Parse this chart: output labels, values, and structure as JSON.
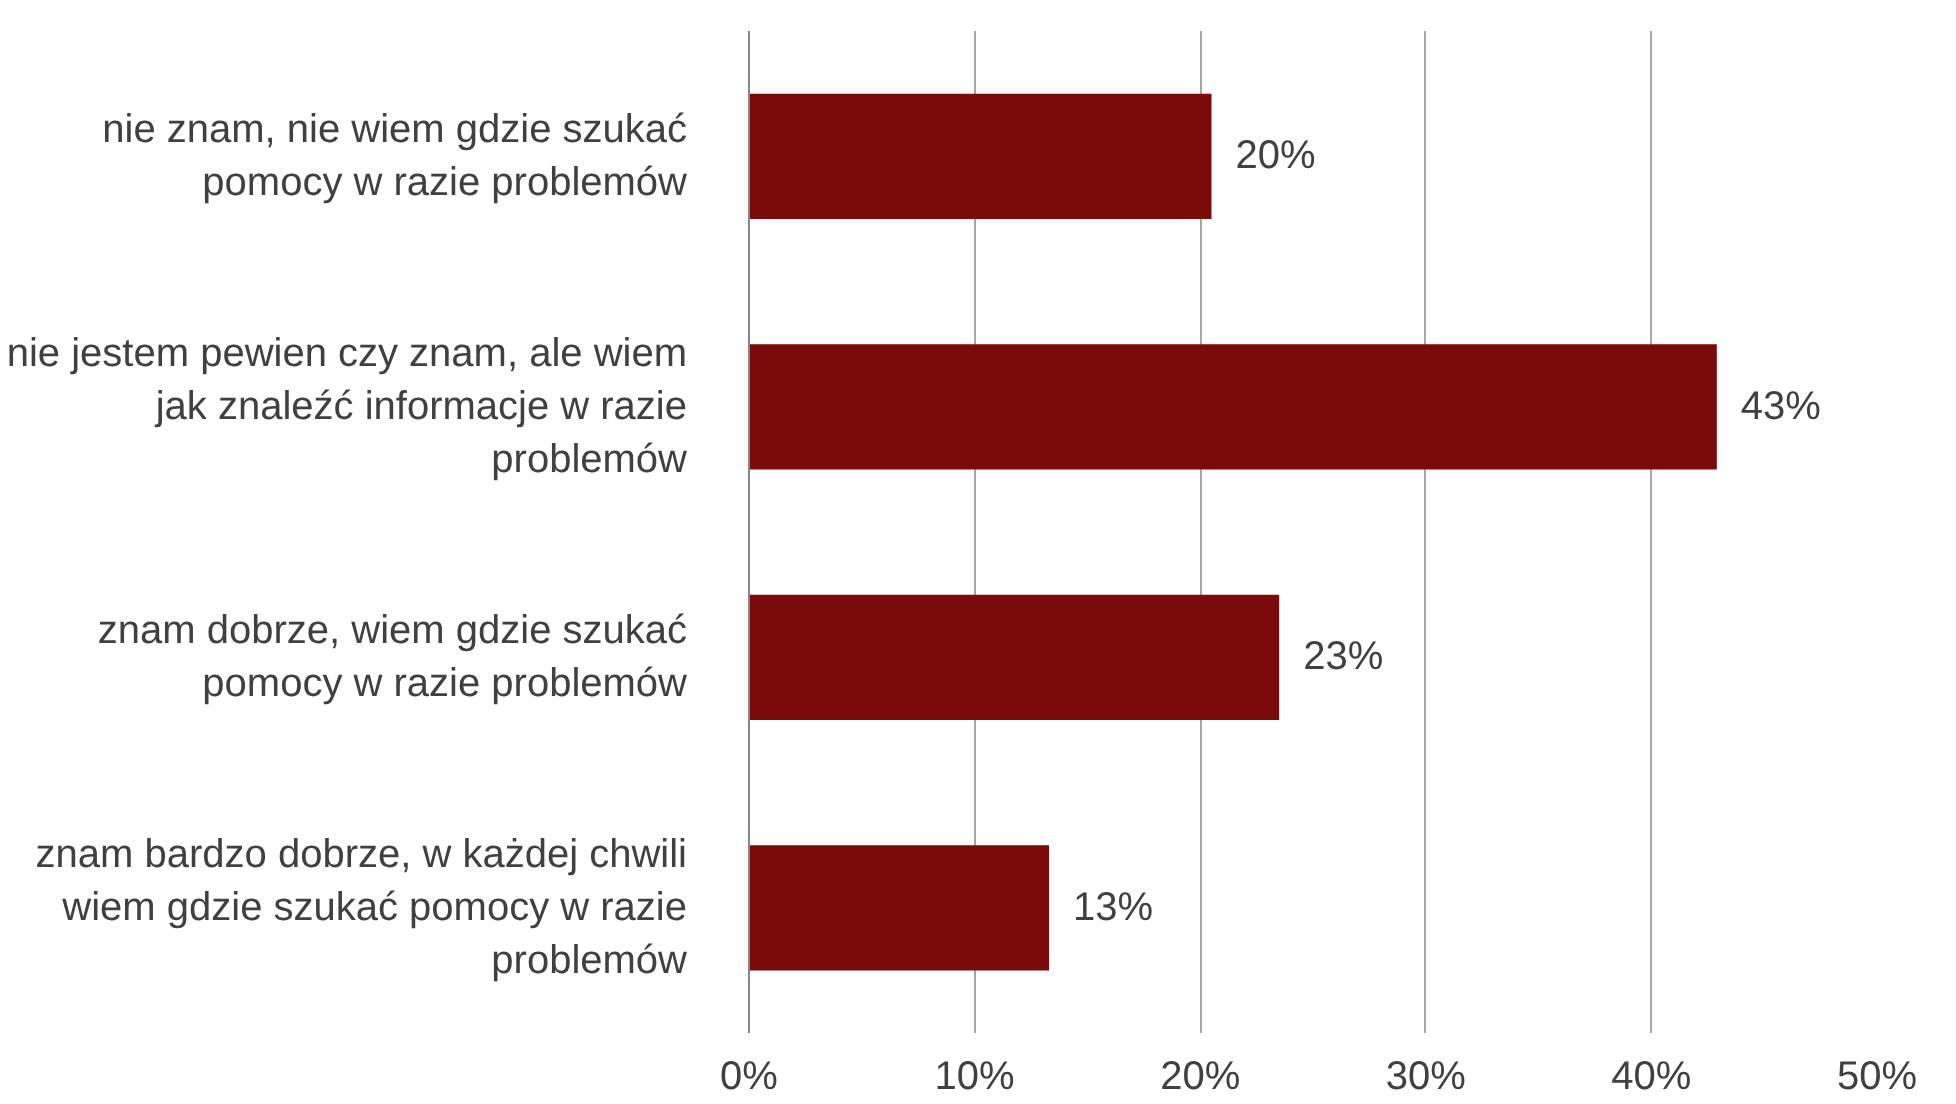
{
  "chart_data": {
    "type": "bar",
    "orientation": "horizontal",
    "categories": [
      "nie znam, nie wiem gdzie szukać pomocy w razie problemów",
      "nie jestem pewien czy znam, ale wiem jak znaleźć informacje w razie problemów",
      "znam dobrze, wiem gdzie szukać pomocy w razie problemów",
      "znam bardzo dobrze, w każdej chwili wiem gdzie szukać pomocy w razie problemów"
    ],
    "values": [
      20.5,
      42.9,
      23.5,
      13.3
    ],
    "value_labels": [
      "20%",
      "43%",
      "23%",
      "13%"
    ],
    "color": "#7b0a0a",
    "xlim": [
      0,
      50
    ],
    "xticks": [
      {
        "value": 0,
        "label": "0%"
      },
      {
        "value": 10,
        "label": "10%"
      },
      {
        "value": 20,
        "label": "20%"
      },
      {
        "value": 30,
        "label": "30%"
      },
      {
        "value": 40,
        "label": "40%"
      },
      {
        "value": 50,
        "label": "50%"
      }
    ],
    "grid": "x"
  }
}
